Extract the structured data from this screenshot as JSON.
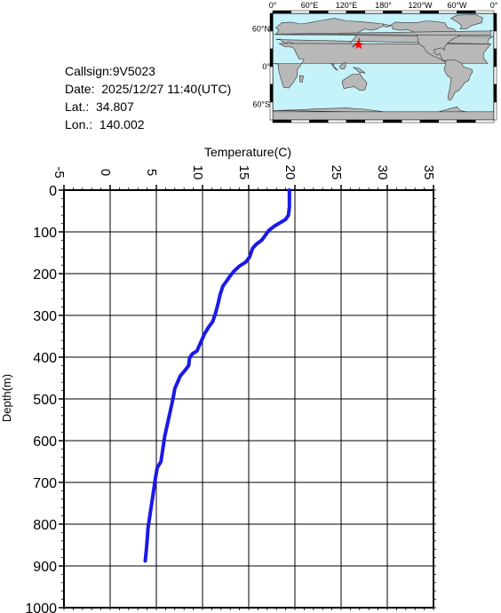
{
  "info": {
    "callsign": "Callsign:9V5023",
    "date": "Date:  2025/12/27 11:40(UTC)",
    "lat": "Lat.:  34.807",
    "lon": "Lon.:  140.002"
  },
  "map": {
    "lon_labels": [
      "0°",
      "60°E",
      "120°E",
      "180°",
      "120°W",
      "60°W",
      "0°"
    ],
    "lat_labels": [
      "60°N",
      "0°",
      "60°S"
    ],
    "marker": {
      "lat": 34.807,
      "lon": 140.002,
      "color": "#ff0000"
    },
    "ocean_color": "#c6f2fa",
    "land_color": "#b8b8b8"
  },
  "chart_data": {
    "type": "line",
    "xlabel": "Temperature(C)",
    "ylabel": "Depth(m)",
    "xlim": [
      -5,
      35
    ],
    "ylim": [
      1000,
      0
    ],
    "x_ticks": [
      "-5",
      "0",
      "5",
      "10",
      "15",
      "20",
      "25",
      "30",
      "35"
    ],
    "y_ticks": [
      "0",
      "100",
      "200",
      "300",
      "400",
      "500",
      "600",
      "700",
      "800",
      "900",
      "1000"
    ],
    "grid": true,
    "series": [
      {
        "color": "#1a1ae6",
        "points": [
          [
            19.4,
            0
          ],
          [
            19.4,
            20
          ],
          [
            19.4,
            40
          ],
          [
            19.3,
            60
          ],
          [
            19.0,
            70
          ],
          [
            18.4,
            78
          ],
          [
            17.8,
            86
          ],
          [
            17.2,
            96
          ],
          [
            16.8,
            108
          ],
          [
            16.4,
            120
          ],
          [
            15.8,
            130
          ],
          [
            15.4,
            140
          ],
          [
            15.1,
            160
          ],
          [
            14.7,
            172
          ],
          [
            14.0,
            182
          ],
          [
            13.4,
            194
          ],
          [
            13.0,
            205
          ],
          [
            12.6,
            218
          ],
          [
            12.2,
            230
          ],
          [
            11.9,
            250
          ],
          [
            11.7,
            270
          ],
          [
            11.4,
            295
          ],
          [
            11.1,
            315
          ],
          [
            10.6,
            330
          ],
          [
            10.2,
            345
          ],
          [
            9.9,
            360
          ],
          [
            9.6,
            375
          ],
          [
            9.4,
            385
          ],
          [
            8.9,
            392
          ],
          [
            8.6,
            402
          ],
          [
            8.5,
            420
          ],
          [
            8.1,
            432
          ],
          [
            7.6,
            445
          ],
          [
            7.3,
            460
          ],
          [
            7.0,
            475
          ],
          [
            6.8,
            500
          ],
          [
            6.5,
            530
          ],
          [
            6.2,
            560
          ],
          [
            5.9,
            590
          ],
          [
            5.7,
            620
          ],
          [
            5.5,
            650
          ],
          [
            5.1,
            665
          ],
          [
            4.9,
            690
          ],
          [
            4.7,
            720
          ],
          [
            4.5,
            750
          ],
          [
            4.3,
            780
          ],
          [
            4.1,
            810
          ],
          [
            4.0,
            840
          ],
          [
            3.9,
            865
          ],
          [
            3.8,
            888
          ]
        ]
      }
    ]
  }
}
